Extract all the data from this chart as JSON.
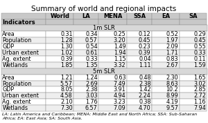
{
  "title": "Summary of world and regional impacts",
  "col_headers": [
    "",
    "World",
    "LA",
    "MENA",
    "SSA",
    "EA",
    "SA"
  ],
  "section_1m_label": "1m SLR",
  "section_5m_label": "5m SLR",
  "section_1m": {
    "Area": [
      "0.31",
      "0.34",
      "0.25",
      "0.12",
      "0.52",
      "0.29"
    ],
    "Population": [
      "1.28",
      "0.57",
      "3.20",
      "0.45",
      "1.97",
      "0.45"
    ],
    "GDP": [
      "1.30",
      "0.54",
      "1.49",
      "0.23",
      "2.09",
      "0.55"
    ],
    "Urban extent": [
      "1.02",
      "0.61",
      "1.94",
      "0.39",
      "1.71",
      "0.33"
    ],
    "Ag. extent": [
      "0.39",
      "0.33",
      "1.15",
      "0.04",
      "0.83",
      "0.11"
    ],
    "Wetlands": [
      "1.85",
      "1.35",
      "3.32",
      "1.11",
      "2.67",
      "1.59"
    ]
  },
  "section_5m": {
    "Area": [
      "1.21",
      "1.24",
      "0.63",
      "0.48",
      "2.30",
      "1.65"
    ],
    "Population": [
      "5.57",
      "2.69",
      "7.49",
      "2.38",
      "8.63",
      "3.02"
    ],
    "GDP": [
      "8.05",
      "2.38",
      "3.91",
      "1.42",
      "10.2",
      "2.85"
    ],
    "Urban extent": [
      "4.58",
      "3.03",
      "4.94",
      "2.24",
      "8.99",
      "2.72"
    ],
    "Ag. extent": [
      "2.10",
      "1.76",
      "3.23",
      "0.38",
      "4.19",
      "1.16"
    ],
    "Wetlands": [
      "7.30",
      "6.57",
      "7.09",
      "4.70",
      "9.57",
      "7.94"
    ]
  },
  "footnote": "LA: Latin America and Caribbean; MENA: Middle East and North Africa; SSA: Sub-Saharan\nAfrica; EA: East Asia; SA: South Asia.",
  "header_bg": "#c8c8c8",
  "section_bg": "#d8d8d8",
  "white_bg": "#ffffff",
  "light_bg": "#eeeeee",
  "border_color": "#888888",
  "title_fontsize": 7.5,
  "header_fontsize": 6.0,
  "data_fontsize": 5.8,
  "footnote_fontsize": 4.5
}
